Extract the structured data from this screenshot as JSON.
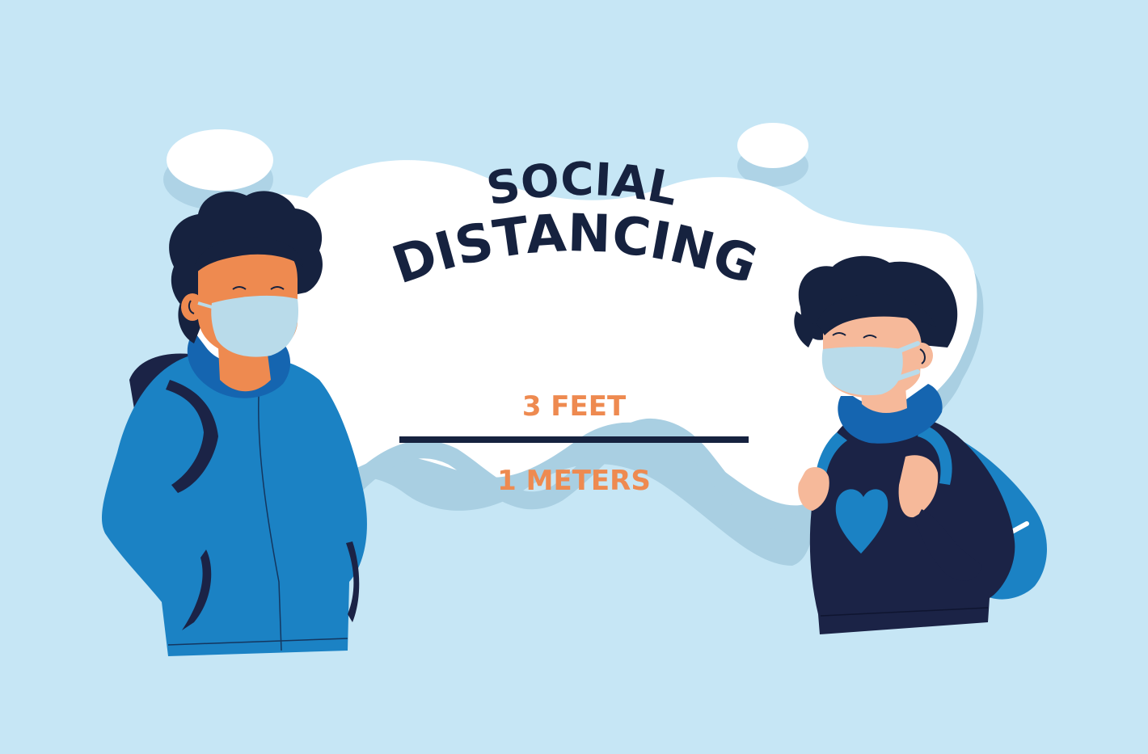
{
  "title": {
    "line1": "SOCIAL",
    "line2": "DISTANCING"
  },
  "distance": {
    "feet": "3 FEET",
    "meters": "1 METERS"
  },
  "colors": {
    "background": "#c6e6f5",
    "cloud": "#ffffff",
    "shadow": "#a9cfe2",
    "title": "#16223f",
    "accent": "#ee8a50",
    "jacket": "#1b82c4",
    "hoodie": "#1b2346",
    "hood_lining": "#1565b0",
    "mask": "#b9dbea",
    "skin_left": "#ee8a50",
    "skin_right": "#f6b99a",
    "hair": "#16223f"
  },
  "icons": {
    "left_person": "boy-with-mask-and-backpack",
    "right_person": "child-with-mask-and-backpack",
    "heart": "heart-icon"
  }
}
